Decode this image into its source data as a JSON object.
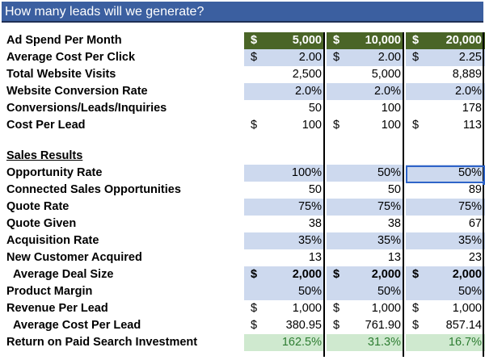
{
  "title": "How many leads will we generate?",
  "currency": "$",
  "rows": [
    {
      "label": "Ad Spend Per Month",
      "values": [
        "5,000",
        "10,000",
        "20,000"
      ],
      "currency": true
    },
    {
      "label": "Average Cost Per Click",
      "values": [
        "2.00",
        "2.00",
        "2.25"
      ],
      "currency": true
    },
    {
      "label": "Total Website Visits",
      "values": [
        "2,500",
        "5,000",
        "8,889"
      ],
      "currency": false
    },
    {
      "label": "Website Conversion Rate",
      "values": [
        "2.0%",
        "2.0%",
        "2.0%"
      ],
      "currency": false
    },
    {
      "label": "Conversions/Leads/Inquiries",
      "values": [
        "50",
        "100",
        "178"
      ],
      "currency": false
    },
    {
      "label": "Cost Per Lead",
      "values": [
        "100",
        "100",
        "113"
      ],
      "currency": true
    },
    {
      "label": "Sales Results",
      "values": [
        "",
        "",
        ""
      ],
      "currency": false
    },
    {
      "label": "Opportunity Rate",
      "values": [
        "100%",
        "50%",
        "50%"
      ],
      "currency": false
    },
    {
      "label": "Connected Sales Opportunities",
      "values": [
        "50",
        "50",
        "89"
      ],
      "currency": false
    },
    {
      "label": "Quote Rate",
      "values": [
        "75%",
        "75%",
        "75%"
      ],
      "currency": false
    },
    {
      "label": "Quote Given",
      "values": [
        "38",
        "38",
        "67"
      ],
      "currency": false
    },
    {
      "label": "Acquisition Rate",
      "values": [
        "35%",
        "35%",
        "35%"
      ],
      "currency": false
    },
    {
      "label": "New Customer Acquired",
      "values": [
        "13",
        "13",
        "23"
      ],
      "currency": false
    },
    {
      "label": "Average Deal Size",
      "values": [
        "2,000",
        "2,000",
        "2,000"
      ],
      "currency": true
    },
    {
      "label": "Product Margin",
      "values": [
        "50%",
        "50%",
        "50%"
      ],
      "currency": false
    },
    {
      "label": "Revenue Per Lead",
      "values": [
        "1,000",
        "1,000",
        "1,000"
      ],
      "currency": true
    },
    {
      "label": "Average Cost Per Lead",
      "values": [
        "380.95",
        "761.90",
        "857.14"
      ],
      "currency": true
    },
    {
      "label": "Return on Paid Search Investment",
      "values": [
        "162.5%",
        "31.3%",
        "16.7%"
      ],
      "currency": false
    }
  ],
  "colors": {
    "title_bg": "#3b5fa0",
    "header_row_bg": "#4a6527",
    "highlight_blue": "#cdd9ee",
    "highlight_green": "#cfe9cf",
    "roi_text": "#2e7d32",
    "selection": "#2f64c8"
  }
}
